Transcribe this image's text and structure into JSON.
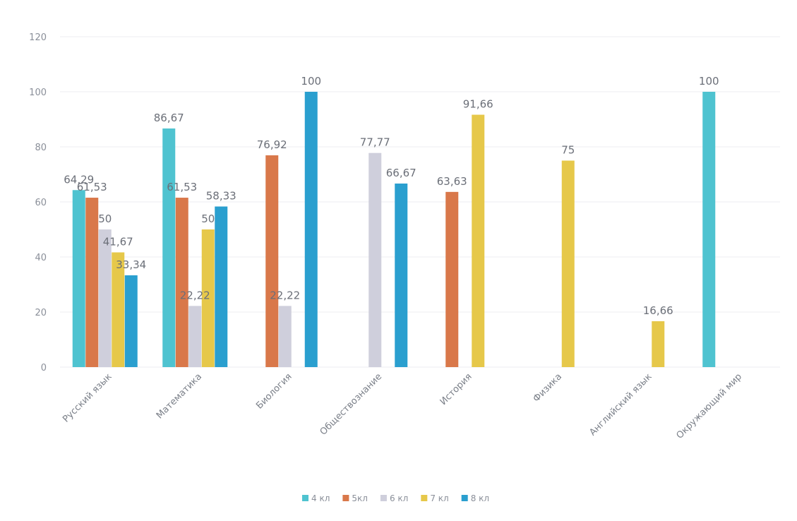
{
  "chart_data": {
    "type": "bar",
    "title": "",
    "xlabel": "",
    "ylabel": "",
    "ylim": [
      0,
      120
    ],
    "yticks": [
      0,
      20,
      40,
      60,
      80,
      100,
      120
    ],
    "grid": true,
    "legend_position": "bottom",
    "categories": [
      "Русский язык",
      "Математика",
      "Биология",
      "Обществознание",
      "История",
      "Физика",
      "Английский язык",
      "Окружающий мир"
    ],
    "series": [
      {
        "name": "4 кл",
        "color": "#4fc3d0",
        "values": [
          64.29,
          86.67,
          null,
          null,
          null,
          null,
          null,
          100
        ],
        "labels": [
          "64,29",
          "86,67",
          null,
          null,
          null,
          null,
          null,
          "100"
        ]
      },
      {
        "name": "5кл",
        "color": "#d9784a",
        "values": [
          61.53,
          61.53,
          76.92,
          null,
          63.63,
          null,
          null,
          null
        ],
        "labels": [
          "61,53",
          "61,53",
          "76,92",
          null,
          "63,63",
          null,
          null,
          null
        ]
      },
      {
        "name": "6 кл",
        "color": "#cfcfdc",
        "values": [
          50,
          22.22,
          22.22,
          77.77,
          null,
          null,
          null,
          null
        ],
        "labels": [
          "50",
          "22,22",
          "22,22",
          "77,77",
          null,
          null,
          null,
          null
        ]
      },
      {
        "name": "7 кл",
        "color": "#e6c84a",
        "values": [
          41.67,
          50,
          null,
          null,
          91.66,
          75,
          16.66,
          null
        ],
        "labels": [
          "41,67",
          "50",
          null,
          null,
          "91,66",
          "75",
          "16,66",
          null
        ]
      },
      {
        "name": "8 кл",
        "color": "#2a9fcf",
        "values": [
          33.34,
          58.33,
          100,
          66.67,
          null,
          null,
          null,
          null
        ],
        "labels": [
          "33,34",
          "58,33",
          "100",
          "66,67",
          null,
          null,
          null,
          null
        ]
      }
    ]
  }
}
